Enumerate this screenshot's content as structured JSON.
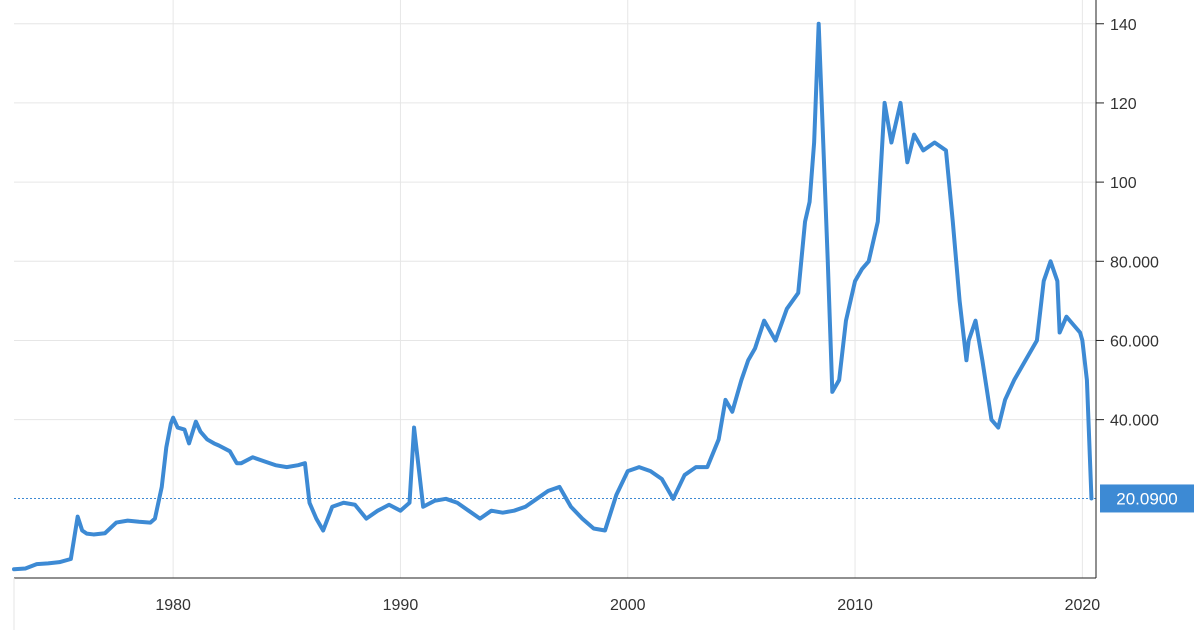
{
  "chart_data": {
    "type": "line",
    "title": "",
    "xlabel": "",
    "ylabel": "",
    "grid": true,
    "xlim": [
      1973.0,
      2020.6
    ],
    "ylim": [
      0,
      146
    ],
    "x_ticks": [
      "1980",
      "1990",
      "2000",
      "2010",
      "2020"
    ],
    "x_tick_values": [
      1980,
      1990,
      2000,
      2010,
      2020
    ],
    "y_ticks": [
      "140",
      "120",
      "100",
      "80.000",
      "60.000",
      "40.000"
    ],
    "y_tick_values": [
      140,
      120,
      100,
      80,
      60,
      40
    ],
    "last_value_label": "20.0900",
    "last_value": 20.09,
    "colors": {
      "line": "#3d8ad4",
      "label_bg": "#3d8ad4",
      "reference_line": "#3d8ad4"
    },
    "series": [
      {
        "x": [
          1973.0,
          1973.5,
          1974.0,
          1974.5,
          1975.0,
          1975.5,
          1975.8,
          1976.0,
          1976.2,
          1976.5,
          1977.0,
          1977.5,
          1978.0,
          1978.5,
          1979.0,
          1979.2,
          1979.5,
          1979.7,
          1979.9,
          1980.0,
          1980.2,
          1980.5,
          1980.7,
          1981.0,
          1981.2,
          1981.5,
          1981.8,
          1982.0,
          1982.5,
          1982.8,
          1983.0,
          1983.5,
          1984.0,
          1984.5,
          1985.0,
          1985.5,
          1985.8,
          1986.0,
          1986.3,
          1986.6,
          1987.0,
          1987.5,
          1988.0,
          1988.5,
          1989.0,
          1989.5,
          1990.0,
          1990.4,
          1990.6,
          1990.8,
          1991.0,
          1991.5,
          1992.0,
          1992.5,
          1993.0,
          1993.5,
          1994.0,
          1994.5,
          1995.0,
          1995.5,
          1996.0,
          1996.5,
          1997.0,
          1997.5,
          1998.0,
          1998.5,
          1999.0,
          1999.5,
          2000.0,
          2000.5,
          2001.0,
          2001.5,
          2002.0,
          2002.5,
          2003.0,
          2003.5,
          2004.0,
          2004.3,
          2004.6,
          2005.0,
          2005.3,
          2005.6,
          2006.0,
          2006.5,
          2007.0,
          2007.5,
          2007.8,
          2008.0,
          2008.2,
          2008.4,
          2008.6,
          2008.8,
          2009.0,
          2009.3,
          2009.6,
          2010.0,
          2010.3,
          2010.6,
          2011.0,
          2011.3,
          2011.6,
          2012.0,
          2012.3,
          2012.6,
          2013.0,
          2013.5,
          2014.0,
          2014.3,
          2014.6,
          2014.9,
          2015.0,
          2015.3,
          2015.6,
          2016.0,
          2016.3,
          2016.6,
          2017.0,
          2017.5,
          2018.0,
          2018.3,
          2018.6,
          2018.9,
          2019.0,
          2019.3,
          2019.6,
          2019.9,
          2020.0,
          2020.2,
          2020.4
        ],
        "values": [
          2.2,
          2.4,
          3.5,
          3.7,
          4.0,
          4.8,
          15.5,
          12.0,
          11.2,
          11.0,
          11.3,
          14.0,
          14.5,
          14.2,
          14.0,
          15.0,
          23.0,
          33.0,
          39.0,
          40.5,
          38.0,
          37.5,
          34.0,
          39.5,
          37.0,
          35.0,
          34.0,
          33.5,
          32.0,
          29.0,
          29.0,
          30.5,
          29.5,
          28.5,
          28.0,
          28.5,
          29.0,
          19.0,
          15.0,
          12.0,
          18.0,
          19.0,
          18.5,
          15.0,
          17.0,
          18.5,
          17.0,
          19.0,
          38.0,
          28.0,
          18.0,
          19.5,
          20.0,
          19.0,
          17.0,
          15.0,
          17.0,
          16.5,
          17.0,
          18.0,
          20.0,
          22.0,
          23.0,
          18.0,
          15.0,
          12.5,
          12.0,
          21.0,
          27.0,
          28.0,
          27.0,
          25.0,
          20.0,
          26.0,
          28.0,
          28.0,
          35.0,
          45.0,
          42.0,
          50.0,
          55.0,
          58.0,
          65.0,
          60.0,
          68.0,
          72.0,
          90.0,
          95.0,
          110.0,
          140.0,
          110.0,
          80.0,
          47.0,
          50.0,
          65.0,
          75.0,
          78.0,
          80.0,
          90.0,
          120.0,
          110.0,
          120.0,
          105.0,
          112.0,
          108.0,
          110.0,
          108.0,
          90.0,
          70.0,
          55.0,
          60.0,
          65.0,
          55.0,
          40.0,
          38.0,
          45.0,
          50.0,
          55.0,
          60.0,
          75.0,
          80.0,
          75.0,
          62.0,
          66.0,
          64.0,
          62.0,
          60.0,
          50.0,
          20.09
        ]
      }
    ]
  }
}
